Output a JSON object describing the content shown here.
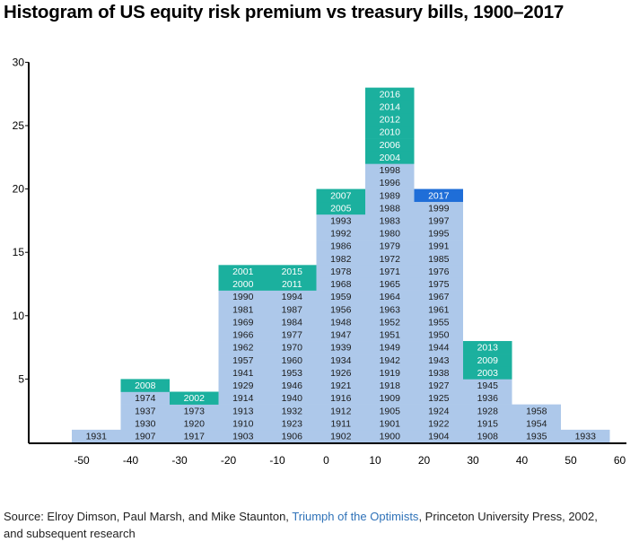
{
  "title": "Histogram of US equity risk premium vs treasury bills, 1900–2017",
  "source": {
    "prefix": "Source: Elroy Dimson, Paul Marsh, and Mike Staunton, ",
    "book": "Triumph of the Optimists",
    "suffix": ", Princeton University Press, 2002,",
    "line2": "and subsequent research"
  },
  "colors": {
    "base": "#adc8ea",
    "recent": "#1bb09e",
    "latest": "#1f6ed8",
    "axis": "#000000"
  },
  "chart_data": {
    "type": "bar",
    "title": "Histogram of US equity risk premium vs treasury bills, 1900–2017",
    "x_ticks": [
      -50,
      -40,
      -30,
      -20,
      -10,
      0,
      10,
      20,
      30,
      40,
      50,
      60
    ],
    "y_ticks": [
      5,
      10,
      15,
      20,
      25,
      30
    ],
    "xlim": [
      -60,
      60
    ],
    "ylim": [
      0,
      30
    ],
    "bins": [
      {
        "range": [
          -50,
          -40
        ],
        "base": [
          "1931"
        ],
        "recent": [],
        "latest": []
      },
      {
        "range": [
          -40,
          -30
        ],
        "base": [
          "1907",
          "1930",
          "1937",
          "1974"
        ],
        "recent": [
          "2008"
        ],
        "latest": []
      },
      {
        "range": [
          -30,
          -20
        ],
        "base": [
          "1917",
          "1920",
          "1973"
        ],
        "recent": [
          "2002"
        ],
        "latest": []
      },
      {
        "range": [
          -20,
          -10
        ],
        "base": [
          "1903",
          "1910",
          "1913",
          "1914",
          "1929",
          "1941",
          "1957",
          "1962",
          "1966",
          "1969",
          "1981",
          "1990"
        ],
        "recent": [
          "2000",
          "2001"
        ],
        "latest": []
      },
      {
        "range": [
          -10,
          0
        ],
        "base": [
          "1906",
          "1923",
          "1932",
          "1940",
          "1946",
          "1953",
          "1960",
          "1970",
          "1977",
          "1984",
          "1987",
          "1994"
        ],
        "recent": [
          "2011",
          "2015"
        ],
        "latest": []
      },
      {
        "range": [
          0,
          10
        ],
        "base": [
          "1902",
          "1911",
          "1912",
          "1916",
          "1921",
          "1926",
          "1934",
          "1939",
          "1947",
          "1948",
          "1956",
          "1959",
          "1968",
          "1978",
          "1982",
          "1986",
          "1992",
          "1993"
        ],
        "recent": [
          "2005",
          "2007"
        ],
        "latest": []
      },
      {
        "range": [
          10,
          20
        ],
        "base": [
          "1900",
          "1901",
          "1905",
          "1909",
          "1918",
          "1919",
          "1942",
          "1949",
          "1951",
          "1952",
          "1963",
          "1964",
          "1965",
          "1971",
          "1972",
          "1979",
          "1980",
          "1983",
          "1988",
          "1989",
          "1996",
          "1998"
        ],
        "recent": [
          "2004",
          "2006",
          "2010",
          "2012",
          "2014",
          "2016"
        ],
        "latest": []
      },
      {
        "range": [
          20,
          30
        ],
        "base": [
          "1904",
          "1922",
          "1924",
          "1925",
          "1927",
          "1938",
          "1943",
          "1944",
          "1950",
          "1955",
          "1961",
          "1967",
          "1975",
          "1976",
          "1985",
          "1991",
          "1995",
          "1997",
          "1999"
        ],
        "recent": [],
        "latest": [
          "2017"
        ]
      },
      {
        "range": [
          30,
          40
        ],
        "base": [
          "1908",
          "1915",
          "1928",
          "1936",
          "1945"
        ],
        "recent": [
          "2003",
          "2009",
          "2013"
        ],
        "latest": []
      },
      {
        "range": [
          40,
          50
        ],
        "base": [
          "1935",
          "1954",
          "1958"
        ],
        "recent": [],
        "latest": []
      },
      {
        "range": [
          50,
          60
        ],
        "base": [
          "1933"
        ],
        "recent": [],
        "latest": []
      }
    ]
  }
}
